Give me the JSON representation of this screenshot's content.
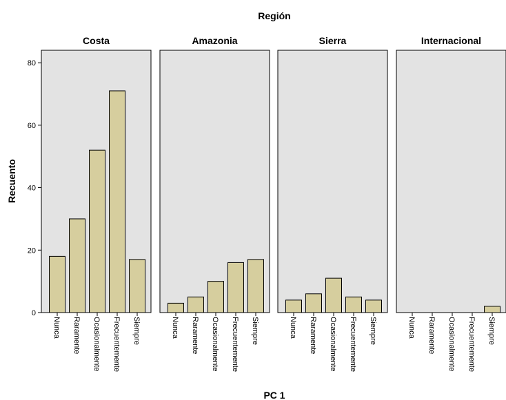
{
  "chart_data": {
    "type": "bar",
    "title": "Región",
    "xlabel": "PC 1",
    "ylabel": "Recuento",
    "categories": [
      "Nunca",
      "Raramente",
      "Ocasionalmente",
      "Frecuentemente",
      "Siempre"
    ],
    "yticks": [
      0,
      20,
      40,
      60,
      80
    ],
    "ylim": [
      0,
      84
    ],
    "grid": false,
    "colors": {
      "bar_fill": "#d6ce9e",
      "bar_stroke": "#000000",
      "panel_background": "#e3e3e3"
    },
    "panels": [
      {
        "name": "Costa",
        "values": [
          18,
          30,
          52,
          71,
          17
        ]
      },
      {
        "name": "Amazonia",
        "values": [
          3,
          5,
          10,
          16,
          17
        ]
      },
      {
        "name": "Sierra",
        "values": [
          4,
          6,
          11,
          5,
          4
        ]
      },
      {
        "name": "Internacional",
        "values": [
          0,
          0,
          0,
          0,
          2
        ]
      }
    ]
  }
}
